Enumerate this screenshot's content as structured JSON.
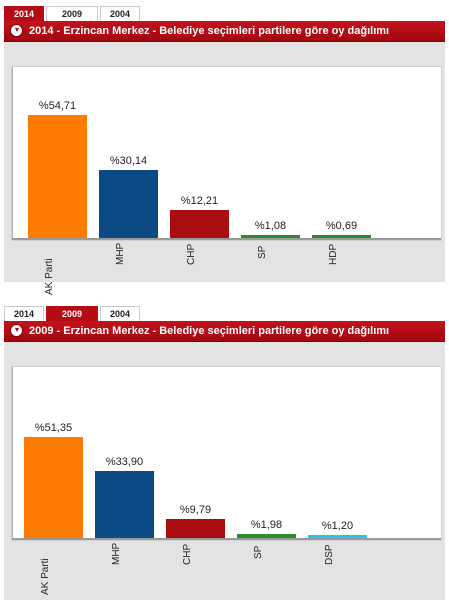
{
  "widgets": [
    {
      "tabs": [
        {
          "label": "2014",
          "active": true
        },
        {
          "label": "2009",
          "active": false
        },
        {
          "label": "2004",
          "active": false
        }
      ],
      "title": "2014 - Erzincan Merkez - Belediye seçimleri partilere göre oy dağılımı",
      "chart_data": {
        "type": "bar",
        "title": "2014 - Erzincan Merkez - Belediye seçimleri partilere göre oy dağılımı",
        "categories": [
          "AK Parti",
          "MHP",
          "CHP",
          "SP",
          "HDP"
        ],
        "values": [
          54.71,
          30.14,
          12.21,
          1.08,
          0.69
        ],
        "value_labels": [
          "%54,71",
          "%30,14",
          "%12,21",
          "%1,08",
          "%0,69"
        ],
        "colors": [
          "#ff7b00",
          "#0b4a84",
          "#a90d12",
          "#2e8b2c",
          "#2e8b2c"
        ],
        "ylim": [
          0,
          60
        ],
        "grid": false
      }
    },
    {
      "tabs": [
        {
          "label": "2014",
          "active": false
        },
        {
          "label": "2009",
          "active": true
        },
        {
          "label": "2004",
          "active": false
        }
      ],
      "title": "2009 - Erzincan Merkez - Belediye seçimleri partilere göre oy dağılımı",
      "chart_data": {
        "type": "bar",
        "title": "2009 - Erzincan Merkez - Belediye seçimleri partilere göre oy dağılımı",
        "categories": [
          "AK Parti",
          "MHP",
          "CHP",
          "SP",
          "DSP"
        ],
        "values": [
          51.35,
          33.9,
          9.79,
          1.98,
          1.2
        ],
        "value_labels": [
          "%51,35",
          "%33,90",
          "%9,79",
          "%1,98",
          "%1,20"
        ],
        "colors": [
          "#ff7b00",
          "#0b4a84",
          "#a90d12",
          "#2e8b2c",
          "#22c7e6"
        ],
        "ylim": [
          0,
          60
        ],
        "grid": false
      }
    }
  ]
}
